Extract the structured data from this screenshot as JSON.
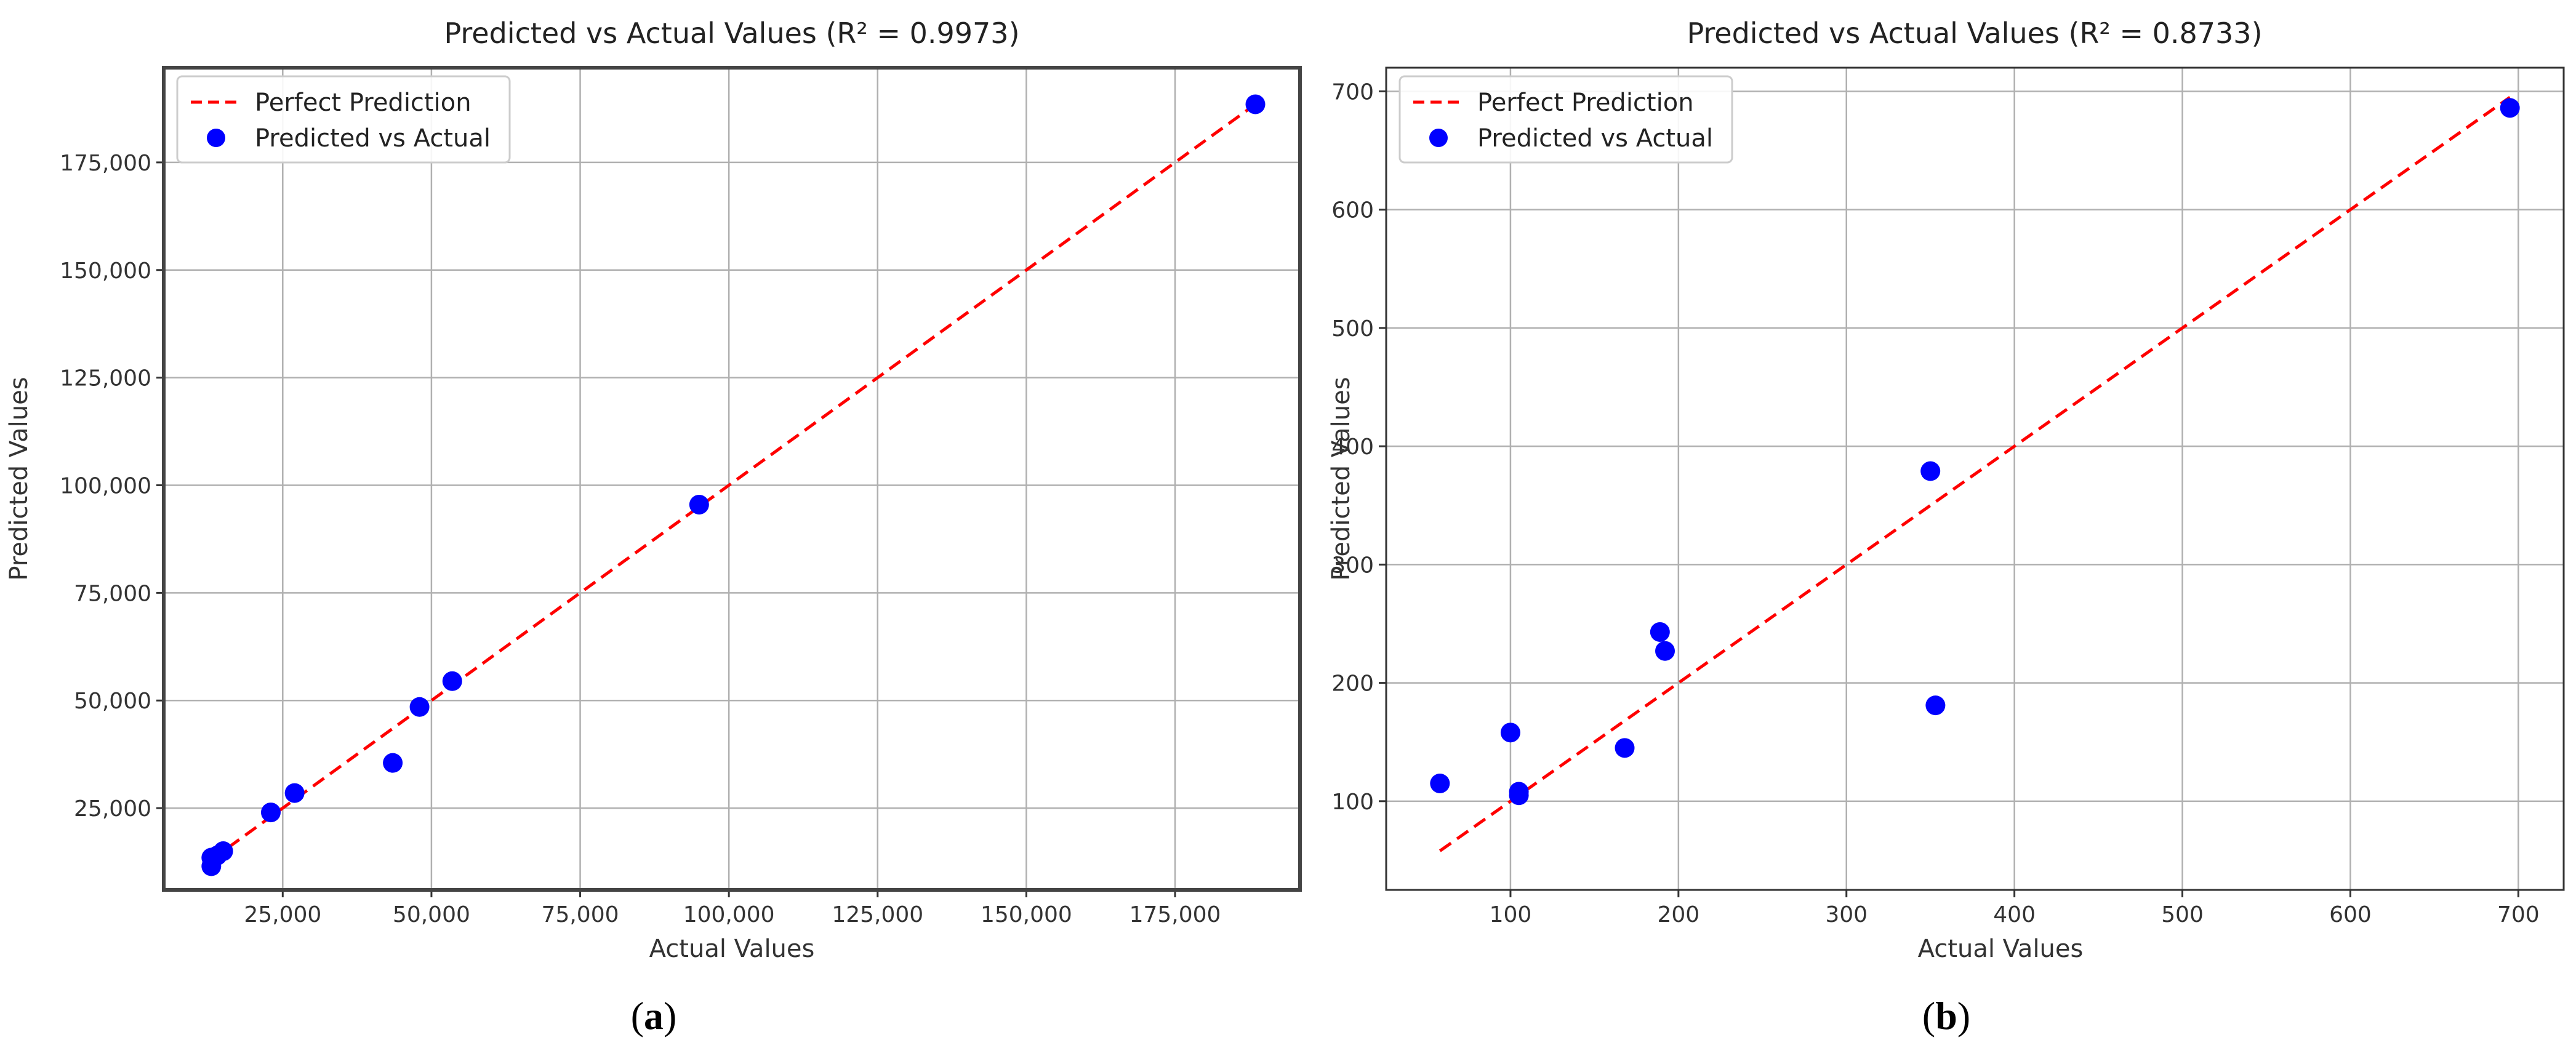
{
  "chart_data": [
    {
      "type": "scatter",
      "panel_label": "a",
      "title": "Predicted vs Actual Values (R² = 0.9973)",
      "xlabel": "Actual Values",
      "ylabel": "Predicted Values",
      "xlim": [
        5000,
        196000
      ],
      "ylim": [
        6000,
        197000
      ],
      "xticks": [
        25000,
        50000,
        75000,
        100000,
        125000,
        150000,
        175000
      ],
      "yticks": [
        25000,
        50000,
        75000,
        100000,
        125000,
        150000,
        175000
      ],
      "grid": true,
      "legend": "top-left",
      "series": [
        {
          "name": "Perfect Prediction",
          "kind": "line",
          "color": "#ff0000",
          "x": [
            13000,
            188500
          ],
          "y": [
            13000,
            188500
          ]
        },
        {
          "name": "Predicted vs Actual",
          "kind": "scatter",
          "color": "#0000ff",
          "x": [
            13000,
            13000,
            14000,
            15000,
            23000,
            27000,
            43500,
            48000,
            53500,
            95000,
            188500
          ],
          "y": [
            11500,
            13500,
            14000,
            15000,
            24000,
            28500,
            35500,
            48500,
            54500,
            95500,
            188500
          ]
        }
      ]
    },
    {
      "type": "scatter",
      "panel_label": "b",
      "title": "Predicted vs Actual Values (R² = 0.8733)",
      "xlabel": "Actual Values",
      "ylabel": "Predicted Values",
      "xlim": [
        26,
        727
      ],
      "ylim": [
        25,
        720
      ],
      "xticks": [
        100,
        200,
        300,
        400,
        500,
        600,
        700
      ],
      "yticks": [
        100,
        200,
        300,
        400,
        500,
        600,
        700
      ],
      "grid": true,
      "legend": "top-left",
      "series": [
        {
          "name": "Perfect Prediction",
          "kind": "line",
          "color": "#ff0000",
          "x": [
            58,
            695
          ],
          "y": [
            58,
            695
          ]
        },
        {
          "name": "Predicted vs Actual",
          "kind": "scatter",
          "color": "#0000ff",
          "x": [
            58,
            100,
            105,
            105,
            168,
            189,
            192,
            350,
            353,
            695
          ],
          "y": [
            115,
            158,
            108,
            105,
            145,
            243,
            227,
            379,
            181,
            686
          ]
        }
      ]
    }
  ]
}
